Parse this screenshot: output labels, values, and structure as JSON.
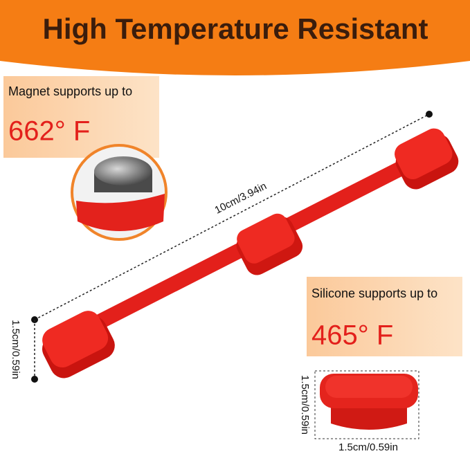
{
  "header": {
    "title": "High Temperature Resistant"
  },
  "magnet_callout": {
    "label": "Magnet supports up to",
    "temperature": "662° F"
  },
  "silicone_callout": {
    "label": "Silicone supports up to",
    "temperature": "465° F"
  },
  "dimensions": {
    "length": "10cm/3.94in",
    "strap_width": "1.5cm/0.59in",
    "piece_height": "1.5cm/0.59in",
    "piece_width": "1.5cm/0.59in"
  }
}
